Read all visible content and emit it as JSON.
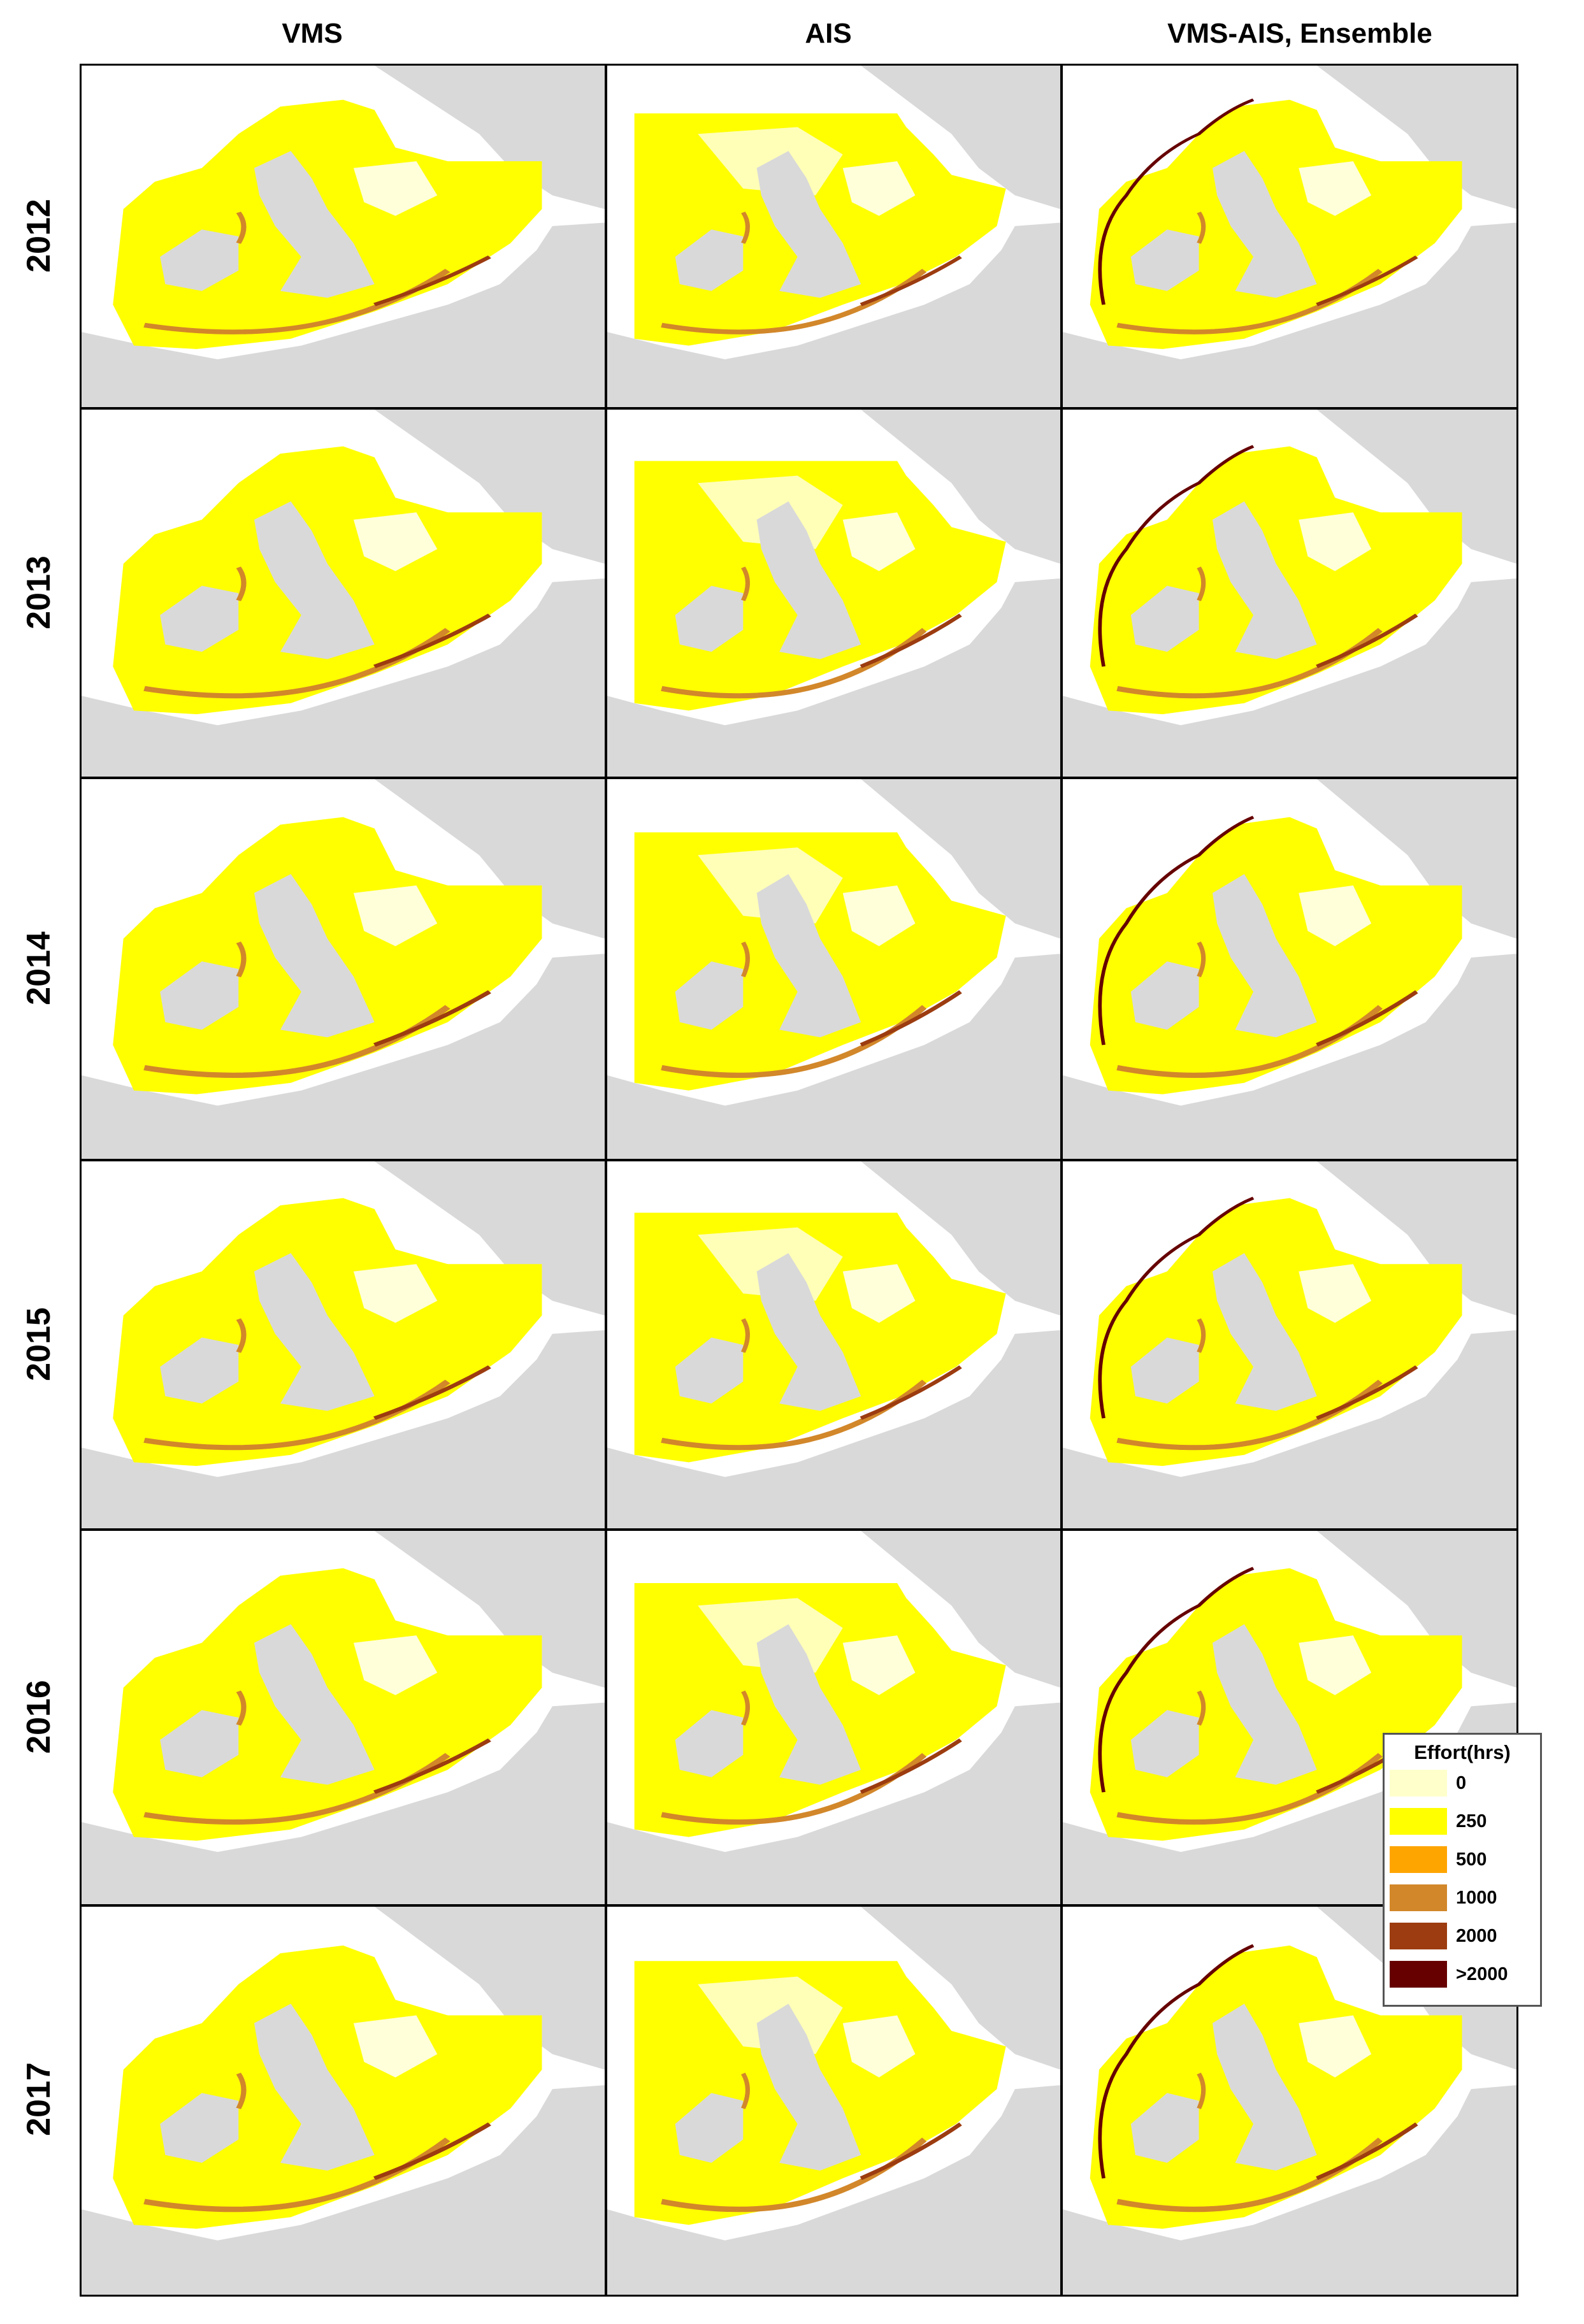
{
  "columns": [
    "VMS",
    "AIS",
    "VMS-AIS, Ensemble"
  ],
  "rows": [
    "2012",
    "2013",
    "2014",
    "2015",
    "2016",
    "2017"
  ],
  "colors": {
    "land": "#d9d9d9",
    "sea_bg": "#ffffff",
    "effort_0": "#ffffcc",
    "effort_250": "#ffff00",
    "effort_500": "#ffa500",
    "effort_1000": "#d2872a",
    "effort_2000": "#9c3c10",
    "effort_gt2000": "#660000"
  },
  "legend": {
    "title": "Effort(hrs)",
    "items": [
      {
        "label": "0",
        "color": "#ffffcc"
      },
      {
        "label": "250",
        "color": "#ffff00"
      },
      {
        "label": "500",
        "color": "#ffa500"
      },
      {
        "label": "1000",
        "color": "#d2872a"
      },
      {
        "label": "2000",
        "color": "#9c3c10"
      },
      {
        "label": ">2000",
        "color": "#660000"
      }
    ]
  }
}
